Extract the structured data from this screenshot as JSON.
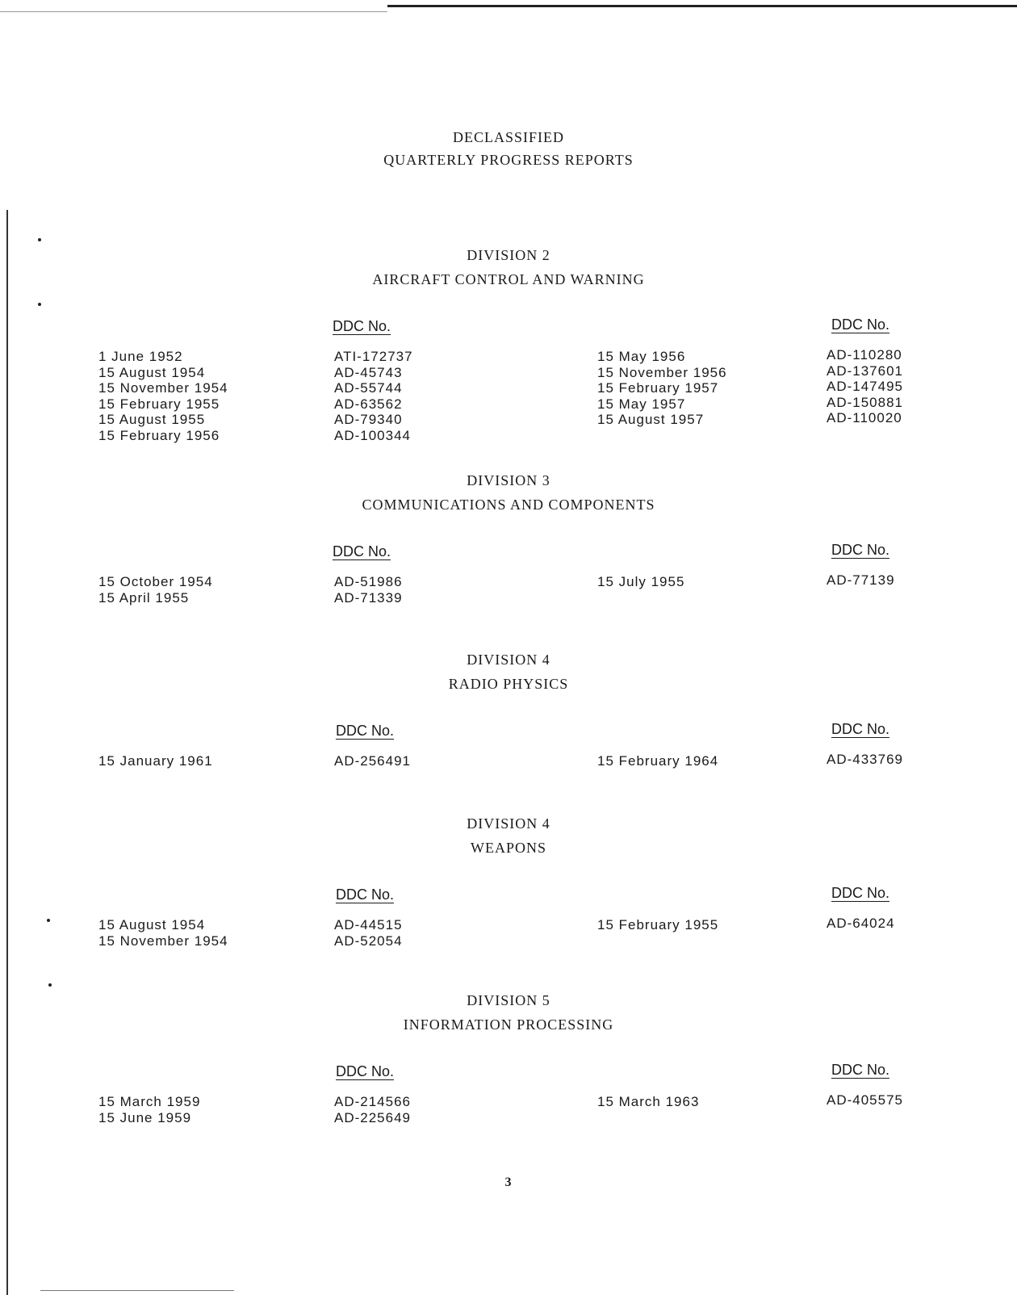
{
  "title_line1": "DECLASSIFIED",
  "title_line2": "QUARTERLY PROGRESS REPORTS",
  "ddc_header": "DDC No.",
  "page_number": "3",
  "sections": [
    {
      "division": "DIVISION 2",
      "name": "AIRCRAFT CONTROL AND WARNING",
      "left": [
        [
          "1 June 1952",
          "ATI-172737"
        ],
        [
          "15 August 1954",
          "AD-45743"
        ],
        [
          "15 November 1954",
          "AD-55744"
        ],
        [
          "15 February 1955",
          "AD-63562"
        ],
        [
          "15 August 1955",
          "AD-79340"
        ],
        [
          "15 February 1956",
          "AD-100344"
        ]
      ],
      "right": [
        [
          "15 May 1956",
          "AD-110280"
        ],
        [
          "15 November 1956",
          "AD-137601"
        ],
        [
          "15 February 1957",
          "AD-147495"
        ],
        [
          "15 May 1957",
          "AD-150881"
        ],
        [
          "15 August 1957",
          "AD-110020"
        ]
      ]
    },
    {
      "division": "DIVISION 3",
      "name": "COMMUNICATIONS AND COMPONENTS",
      "left": [
        [
          "15 October 1954",
          "AD-51986"
        ],
        [
          "15 April 1955",
          "AD-71339"
        ]
      ],
      "right": [
        [
          "15 July 1955",
          "AD-77139"
        ]
      ]
    },
    {
      "division": "DIVISION 4",
      "name": "RADIO PHYSICS",
      "left": [
        [
          "15 January 1961",
          "AD-256491"
        ]
      ],
      "right": [
        [
          "15 February 1964",
          "AD-433769"
        ]
      ]
    },
    {
      "division": "DIVISION 4",
      "name": "WEAPONS",
      "left": [
        [
          "15 August 1954",
          "AD-44515"
        ],
        [
          "15 November 1954",
          "AD-52054"
        ]
      ],
      "right": [
        [
          "15 February 1955",
          "AD-64024"
        ]
      ]
    },
    {
      "division": "DIVISION 5",
      "name": "INFORMATION PROCESSING",
      "left": [
        [
          "15 March 1959",
          "AD-214566"
        ],
        [
          "15 June 1959",
          "AD-225649"
        ]
      ],
      "right": [
        [
          "15 March 1963",
          "AD-405575"
        ]
      ]
    }
  ]
}
